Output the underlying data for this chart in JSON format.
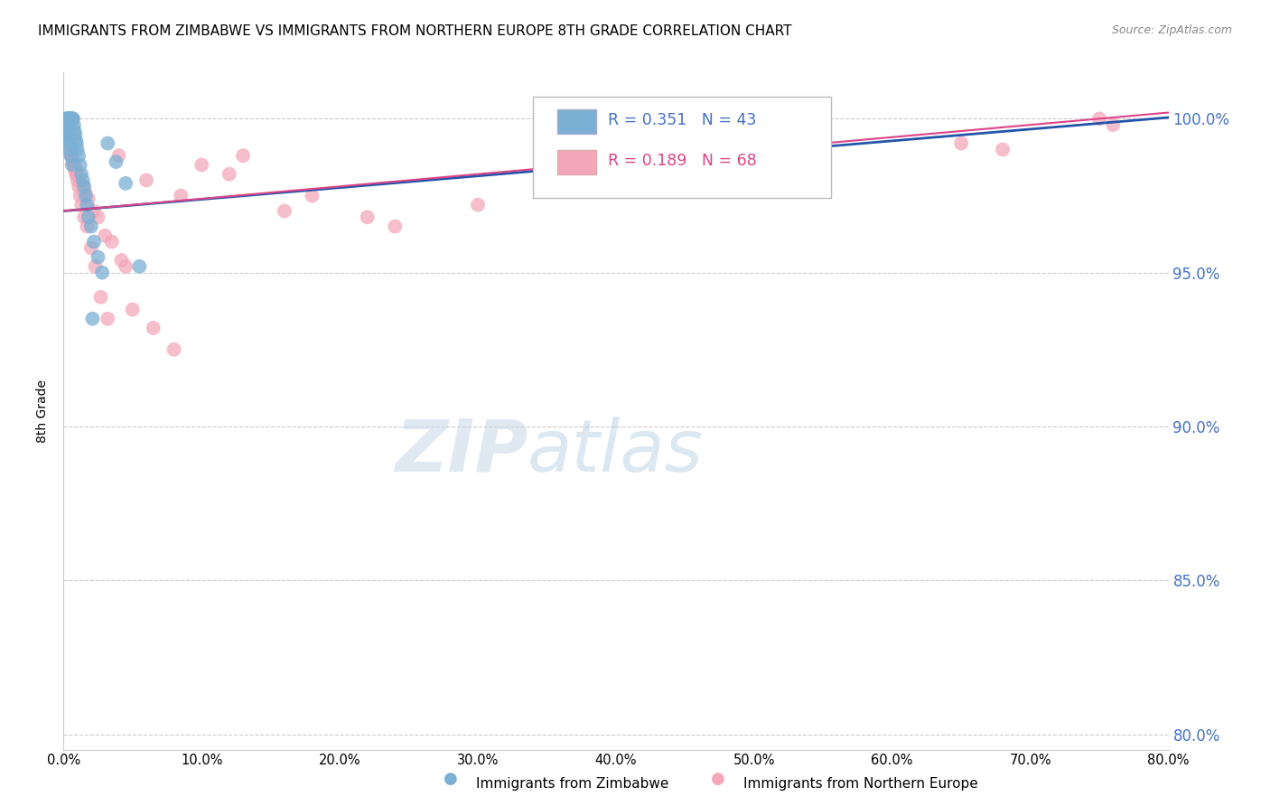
{
  "title": "IMMIGRANTS FROM ZIMBABWE VS IMMIGRANTS FROM NORTHERN EUROPE 8TH GRADE CORRELATION CHART",
  "source": "Source: ZipAtlas.com",
  "ylabel": "8th Grade",
  "right_ylabel_color": "#4472c4",
  "legend1_label": "Immigrants from Zimbabwe",
  "legend2_label": "Immigrants from Northern Europe",
  "R1": 0.351,
  "N1": 43,
  "R2": 0.189,
  "N2": 68,
  "color_blue": "#7bafd4",
  "color_pink": "#f4a7b9",
  "line_color_blue": "#2255aa",
  "line_color_pink": "#dd4488",
  "xlim": [
    0.0,
    80.0
  ],
  "ylim": [
    79.5,
    101.5
  ],
  "yticks": [
    80.0,
    85.0,
    90.0,
    95.0,
    100.0
  ],
  "xticks": [
    0.0,
    10.0,
    20.0,
    30.0,
    40.0,
    50.0,
    60.0,
    70.0,
    80.0
  ],
  "blue_x": [
    0.1,
    0.15,
    0.2,
    0.25,
    0.3,
    0.35,
    0.4,
    0.45,
    0.5,
    0.55,
    0.6,
    0.65,
    0.7,
    0.75,
    0.8,
    0.85,
    0.9,
    0.95,
    1.0,
    1.1,
    1.2,
    1.3,
    1.4,
    1.5,
    1.6,
    1.7,
    1.8,
    2.0,
    2.2,
    2.5,
    2.8,
    3.2,
    3.8,
    4.5,
    5.5,
    0.12,
    0.22,
    0.32,
    0.42,
    0.52,
    0.62,
    2.1,
    0.28
  ],
  "blue_y": [
    99.5,
    99.8,
    100.0,
    100.0,
    100.0,
    100.0,
    100.0,
    100.0,
    100.0,
    100.0,
    100.0,
    100.0,
    100.0,
    99.8,
    99.6,
    99.5,
    99.3,
    99.2,
    99.0,
    98.8,
    98.5,
    98.2,
    98.0,
    97.8,
    97.5,
    97.2,
    96.8,
    96.5,
    96.0,
    95.5,
    95.0,
    99.2,
    98.6,
    97.9,
    95.2,
    99.6,
    99.4,
    99.2,
    99.0,
    98.8,
    98.5,
    93.5,
    99.7
  ],
  "pink_x": [
    0.1,
    0.15,
    0.2,
    0.25,
    0.3,
    0.35,
    0.4,
    0.45,
    0.5,
    0.55,
    0.6,
    0.65,
    0.7,
    0.75,
    0.8,
    0.85,
    0.9,
    1.0,
    1.1,
    1.2,
    1.3,
    1.5,
    1.7,
    2.0,
    2.3,
    2.7,
    3.2,
    4.0,
    5.0,
    6.5,
    8.0,
    10.0,
    13.0,
    18.0,
    24.0,
    35.0,
    48.0,
    65.0,
    75.0,
    0.3,
    0.5,
    0.7,
    1.0,
    1.4,
    1.8,
    2.5,
    3.5,
    4.5,
    0.22,
    0.42,
    0.62,
    0.82,
    1.15,
    1.6,
    2.2,
    3.0,
    4.2,
    6.0,
    8.5,
    12.0,
    16.0,
    22.0,
    30.0,
    42.0,
    55.0,
    68.0,
    76.0,
    0.18
  ],
  "pink_y": [
    99.7,
    99.6,
    99.5,
    99.5,
    99.4,
    99.3,
    99.2,
    99.1,
    99.0,
    98.9,
    98.8,
    98.7,
    98.6,
    98.5,
    98.4,
    98.3,
    98.2,
    98.0,
    97.8,
    97.5,
    97.2,
    96.8,
    96.5,
    95.8,
    95.2,
    94.2,
    93.5,
    98.8,
    93.8,
    93.2,
    92.5,
    98.5,
    98.8,
    97.5,
    96.5,
    97.8,
    98.2,
    99.2,
    100.0,
    99.2,
    98.9,
    98.6,
    98.2,
    97.8,
    97.4,
    96.8,
    96.0,
    95.2,
    99.4,
    99.1,
    98.8,
    98.5,
    98.1,
    97.6,
    97.0,
    96.2,
    95.4,
    98.0,
    97.5,
    98.2,
    97.0,
    96.8,
    97.2,
    97.8,
    98.5,
    99.0,
    99.8,
    99.3
  ],
  "watermark_zip": "ZIP",
  "watermark_atlas": "atlas",
  "figsize": [
    14.06,
    8.92
  ],
  "dpi": 100
}
